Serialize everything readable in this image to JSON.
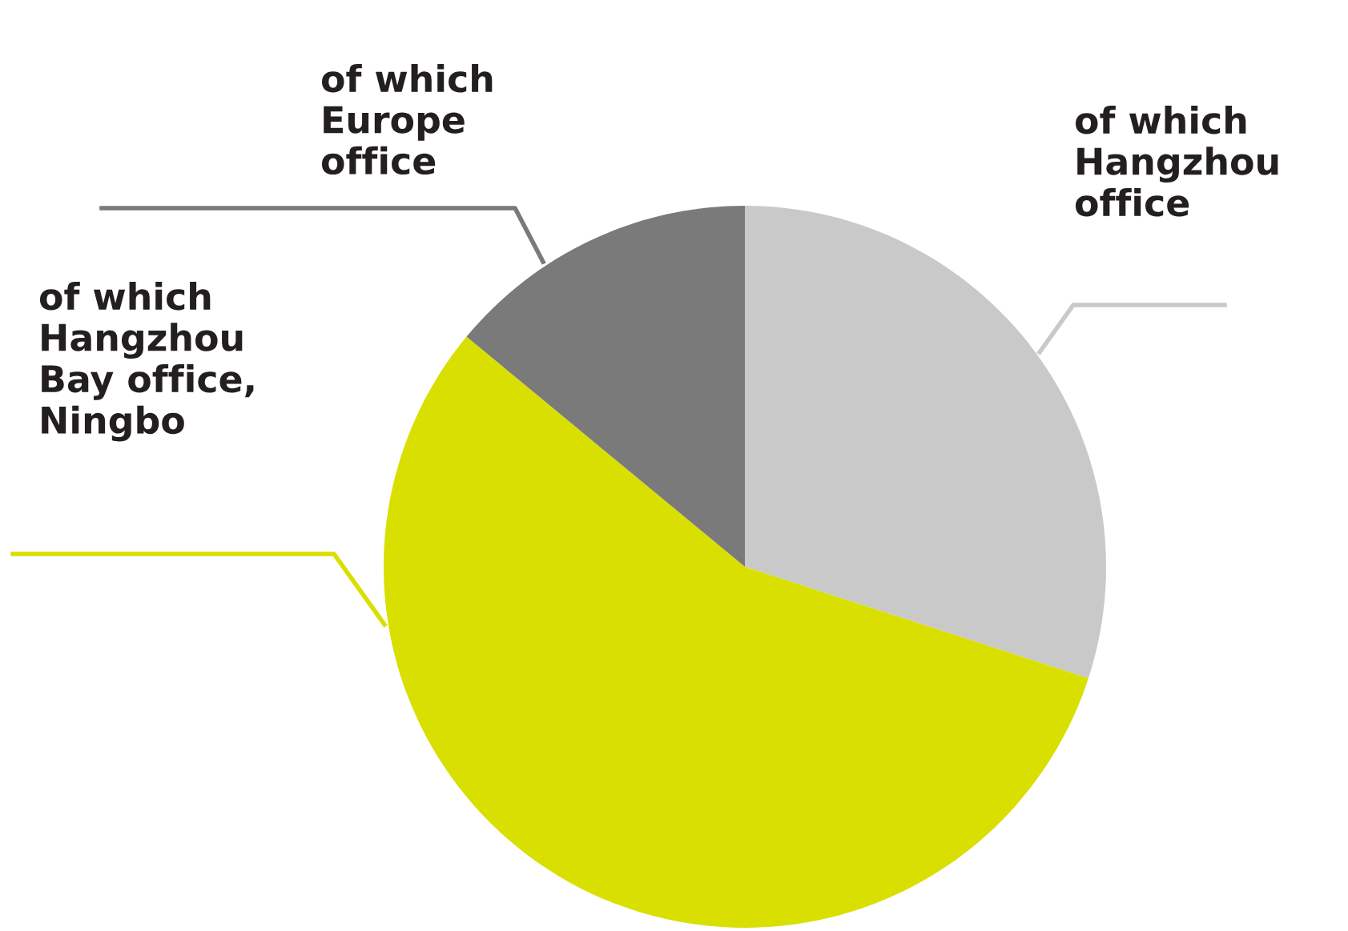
{
  "chart_data": {
    "type": "pie",
    "categories": [
      "of which\nHangzhou\noffice",
      "of which\nHangzhou\nBay office,\nNingbo",
      "of which\nEurope\noffice"
    ],
    "values": [
      30,
      56,
      14
    ],
    "colors": [
      "#c8c9c8",
      "#d9df00",
      "#7a7a7a"
    ]
  }
}
